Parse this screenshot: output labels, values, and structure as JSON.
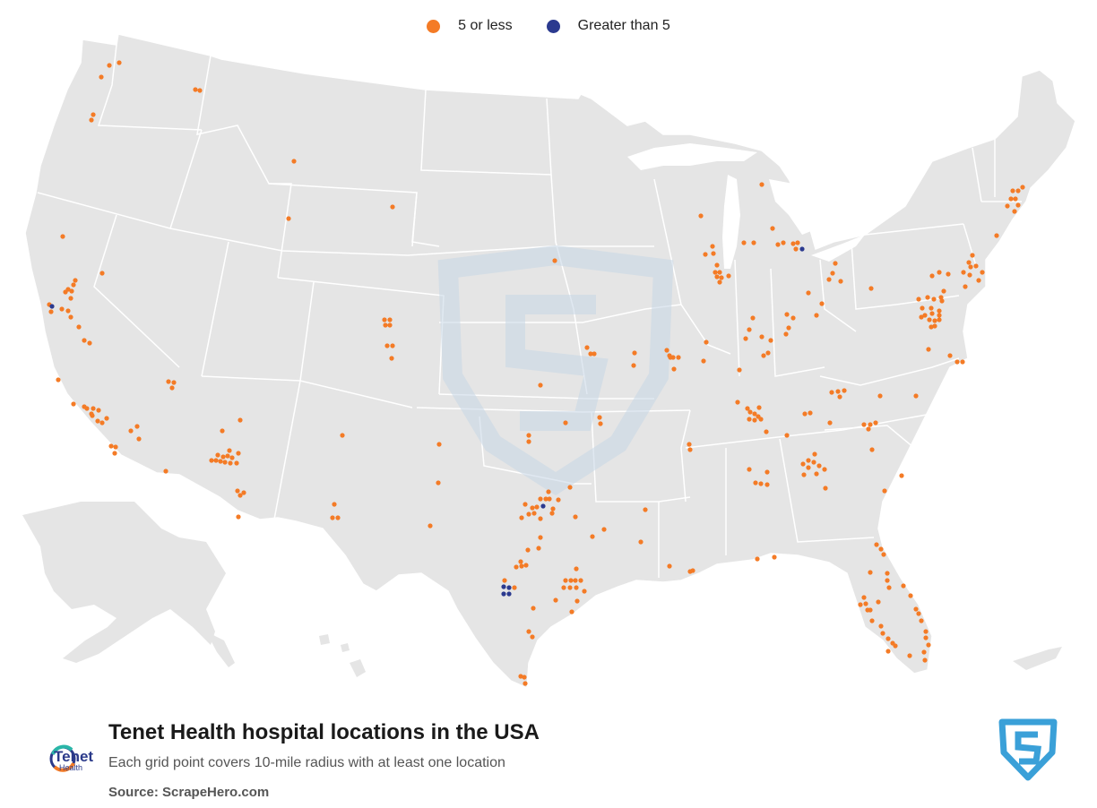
{
  "legend": [
    {
      "label": "5 or less",
      "color": "#f47b26"
    },
    {
      "label": "Greater than 5",
      "color": "#2b3a8f"
    }
  ],
  "title": "Tenet Health hospital locations in the USA",
  "subtitle": "Each grid point covers 10-mile radius with at least one location",
  "source": "Source: ScrapeHero.com",
  "brand": {
    "name": "Tenet",
    "sub": "Health"
  },
  "colors": {
    "land": "#e5e5e5",
    "border": "#ffffff",
    "low": "#f47b26",
    "high": "#2b3a8f",
    "watermark": "#c7d7e6",
    "scrapehero": "#3aa0d8"
  },
  "markers": {
    "low": [
      [
        55,
        340
      ],
      [
        57,
        348
      ],
      [
        70,
        264
      ],
      [
        114,
        305
      ],
      [
        73,
        326
      ],
      [
        76,
        323
      ],
      [
        80,
        325
      ],
      [
        82,
        318
      ],
      [
        84,
        313
      ],
      [
        79,
        333
      ],
      [
        69,
        345
      ],
      [
        76,
        347
      ],
      [
        79,
        354
      ],
      [
        88,
        365
      ],
      [
        94,
        380
      ],
      [
        100,
        383
      ],
      [
        65,
        424
      ],
      [
        82,
        451
      ],
      [
        94,
        454
      ],
      [
        97,
        456
      ],
      [
        102,
        462
      ],
      [
        104,
        456
      ],
      [
        110,
        458
      ],
      [
        103,
        464
      ],
      [
        109,
        470
      ],
      [
        114,
        472
      ],
      [
        119,
        467
      ],
      [
        124,
        498
      ],
      [
        129,
        499
      ],
      [
        128,
        506
      ],
      [
        146,
        481
      ],
      [
        153,
        476
      ],
      [
        155,
        490
      ],
      [
        185,
        526
      ],
      [
        188,
        426
      ],
      [
        192,
        433
      ],
      [
        194,
        427
      ],
      [
        113,
        86
      ],
      [
        122,
        73
      ],
      [
        133,
        70
      ],
      [
        104,
        128
      ],
      [
        102,
        134
      ],
      [
        218,
        100
      ],
      [
        223,
        101
      ],
      [
        328,
        180
      ],
      [
        322,
        244
      ],
      [
        438,
        231
      ],
      [
        429,
        357
      ],
      [
        435,
        357
      ],
      [
        430,
        363
      ],
      [
        435,
        363
      ],
      [
        432,
        386
      ],
      [
        438,
        386
      ],
      [
        437,
        400
      ],
      [
        248,
        481
      ],
      [
        268,
        469
      ],
      [
        236,
        514
      ],
      [
        241,
        514
      ],
      [
        246,
        515
      ],
      [
        251,
        516
      ],
      [
        257,
        517
      ],
      [
        259,
        511
      ],
      [
        243,
        508
      ],
      [
        249,
        510
      ],
      [
        254,
        509
      ],
      [
        256,
        503
      ],
      [
        264,
        517
      ],
      [
        266,
        506
      ],
      [
        265,
        548
      ],
      [
        268,
        553
      ],
      [
        272,
        550
      ],
      [
        266,
        577
      ],
      [
        382,
        486
      ],
      [
        373,
        563
      ],
      [
        371,
        578
      ],
      [
        377,
        578
      ],
      [
        490,
        496
      ],
      [
        489,
        539
      ],
      [
        480,
        587
      ],
      [
        586,
        563
      ],
      [
        594,
        567
      ],
      [
        590,
        574
      ],
      [
        596,
        573
      ],
      [
        599,
        566
      ],
      [
        603,
        557
      ],
      [
        609,
        557
      ],
      [
        613,
        557
      ],
      [
        617,
        568
      ],
      [
        616,
        573
      ],
      [
        623,
        558
      ],
      [
        612,
        549
      ],
      [
        582,
        578
      ],
      [
        603,
        579
      ],
      [
        603,
        600
      ],
      [
        601,
        612
      ],
      [
        589,
        614
      ],
      [
        581,
        627
      ],
      [
        576,
        633
      ],
      [
        582,
        632
      ],
      [
        587,
        631
      ],
      [
        563,
        648
      ],
      [
        574,
        656
      ],
      [
        595,
        679
      ],
      [
        590,
        705
      ],
      [
        594,
        711
      ],
      [
        581,
        755
      ],
      [
        586,
        763
      ],
      [
        585,
        756
      ],
      [
        636,
        544
      ],
      [
        642,
        577
      ],
      [
        661,
        599
      ],
      [
        674,
        591
      ],
      [
        643,
        635
      ],
      [
        631,
        648
      ],
      [
        637,
        648
      ],
      [
        642,
        648
      ],
      [
        648,
        648
      ],
      [
        629,
        656
      ],
      [
        636,
        656
      ],
      [
        643,
        656
      ],
      [
        652,
        660
      ],
      [
        644,
        671
      ],
      [
        620,
        670
      ],
      [
        638,
        683
      ],
      [
        590,
        486
      ],
      [
        590,
        493
      ],
      [
        603,
        430
      ],
      [
        631,
        472
      ],
      [
        669,
        466
      ],
      [
        670,
        473
      ],
      [
        619,
        291
      ],
      [
        655,
        388
      ],
      [
        659,
        395
      ],
      [
        663,
        395
      ],
      [
        708,
        394
      ],
      [
        707,
        408
      ],
      [
        720,
        569
      ],
      [
        715,
        605
      ],
      [
        747,
        632
      ],
      [
        770,
        638
      ],
      [
        773,
        637
      ],
      [
        744,
        391
      ],
      [
        747,
        397
      ],
      [
        748,
        399
      ],
      [
        751,
        399
      ],
      [
        757,
        399
      ],
      [
        752,
        412
      ],
      [
        769,
        496
      ],
      [
        770,
        502
      ],
      [
        788,
        382
      ],
      [
        785,
        403
      ],
      [
        782,
        241
      ],
      [
        787,
        284
      ],
      [
        795,
        275
      ],
      [
        796,
        283
      ],
      [
        800,
        296
      ],
      [
        798,
        304
      ],
      [
        803,
        304
      ],
      [
        800,
        309
      ],
      [
        805,
        310
      ],
      [
        803,
        315
      ],
      [
        813,
        308
      ],
      [
        850,
        206
      ],
      [
        830,
        271
      ],
      [
        841,
        271
      ],
      [
        862,
        255
      ],
      [
        868,
        273
      ],
      [
        874,
        271
      ],
      [
        885,
        272
      ],
      [
        890,
        271
      ],
      [
        888,
        278
      ],
      [
        932,
        294
      ],
      [
        929,
        305
      ],
      [
        925,
        312
      ],
      [
        938,
        314
      ],
      [
        902,
        327
      ],
      [
        917,
        339
      ],
      [
        911,
        352
      ],
      [
        878,
        351
      ],
      [
        885,
        355
      ],
      [
        880,
        366
      ],
      [
        877,
        373
      ],
      [
        860,
        380
      ],
      [
        850,
        376
      ],
      [
        840,
        355
      ],
      [
        836,
        368
      ],
      [
        832,
        378
      ],
      [
        825,
        413
      ],
      [
        852,
        397
      ],
      [
        857,
        394
      ],
      [
        823,
        449
      ],
      [
        834,
        456
      ],
      [
        837,
        460
      ],
      [
        842,
        462
      ],
      [
        847,
        455
      ],
      [
        846,
        465
      ],
      [
        836,
        468
      ],
      [
        842,
        469
      ],
      [
        849,
        468
      ],
      [
        855,
        482
      ],
      [
        898,
        462
      ],
      [
        904,
        461
      ],
      [
        878,
        486
      ],
      [
        928,
        438
      ],
      [
        935,
        437
      ],
      [
        942,
        436
      ],
      [
        937,
        443
      ],
      [
        926,
        472
      ],
      [
        982,
        442
      ],
      [
        1022,
        442
      ],
      [
        973,
        502
      ],
      [
        964,
        474
      ],
      [
        971,
        474
      ],
      [
        977,
        472
      ],
      [
        969,
        479
      ],
      [
        1006,
        531
      ],
      [
        987,
        548
      ],
      [
        836,
        524
      ],
      [
        843,
        539
      ],
      [
        849,
        540
      ],
      [
        856,
        541
      ],
      [
        856,
        527
      ],
      [
        896,
        518
      ],
      [
        902,
        514
      ],
      [
        902,
        522
      ],
      [
        908,
        516
      ],
      [
        914,
        520
      ],
      [
        909,
        507
      ],
      [
        911,
        529
      ],
      [
        920,
        524
      ],
      [
        897,
        530
      ],
      [
        921,
        545
      ],
      [
        845,
        624
      ],
      [
        864,
        622
      ],
      [
        978,
        608
      ],
      [
        983,
        613
      ],
      [
        986,
        619
      ],
      [
        971,
        639
      ],
      [
        990,
        640
      ],
      [
        990,
        648
      ],
      [
        992,
        656
      ],
      [
        1008,
        654
      ],
      [
        1016,
        665
      ],
      [
        1022,
        680
      ],
      [
        1025,
        685
      ],
      [
        1028,
        693
      ],
      [
        1033,
        705
      ],
      [
        1033,
        712
      ],
      [
        1036,
        720
      ],
      [
        1031,
        728
      ],
      [
        1032,
        737
      ],
      [
        1015,
        732
      ],
      [
        999,
        721
      ],
      [
        996,
        718
      ],
      [
        983,
        699
      ],
      [
        985,
        707
      ],
      [
        991,
        713
      ],
      [
        991,
        727
      ],
      [
        973,
        693
      ],
      [
        968,
        681
      ],
      [
        964,
        667
      ],
      [
        966,
        674
      ],
      [
        971,
        681
      ],
      [
        960,
        675
      ],
      [
        980,
        672
      ],
      [
        972,
        322
      ],
      [
        1035,
        332
      ],
      [
        1042,
        334
      ],
      [
        1051,
        336
      ],
      [
        1050,
        332
      ],
      [
        1053,
        325
      ],
      [
        1025,
        334
      ],
      [
        1040,
        308
      ],
      [
        1048,
        304
      ],
      [
        1058,
        306
      ],
      [
        1029,
        344
      ],
      [
        1028,
        354
      ],
      [
        1039,
        344
      ],
      [
        1040,
        350
      ],
      [
        1037,
        357
      ],
      [
        1043,
        358
      ],
      [
        1048,
        347
      ],
      [
        1048,
        352
      ],
      [
        1048,
        357
      ],
      [
        1039,
        365
      ],
      [
        1043,
        364
      ],
      [
        1032,
        352
      ],
      [
        1036,
        390
      ],
      [
        1060,
        397
      ],
      [
        1068,
        404
      ],
      [
        1074,
        404
      ],
      [
        1077,
        320
      ],
      [
        1082,
        307
      ],
      [
        1081,
        293
      ],
      [
        1085,
        285
      ],
      [
        1083,
        298
      ],
      [
        1089,
        297
      ],
      [
        1096,
        304
      ],
      [
        1092,
        313
      ],
      [
        1075,
        304
      ],
      [
        1112,
        263
      ],
      [
        1130,
        213
      ],
      [
        1136,
        213
      ],
      [
        1141,
        209
      ],
      [
        1128,
        222
      ],
      [
        1133,
        222
      ],
      [
        1136,
        229
      ],
      [
        1124,
        230
      ],
      [
        1132,
        236
      ]
    ],
    "high": [
      [
        58,
        342
      ],
      [
        895,
        278
      ],
      [
        606,
        565
      ],
      [
        562,
        655
      ],
      [
        568,
        656
      ],
      [
        562,
        663
      ],
      [
        568,
        663
      ]
    ]
  }
}
